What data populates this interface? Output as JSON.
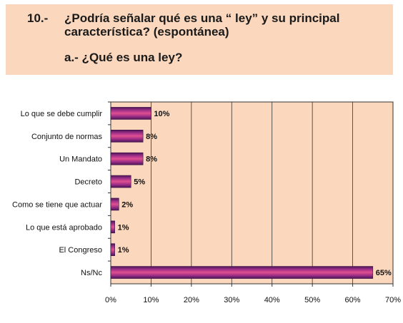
{
  "header": {
    "number": "10.-",
    "question_line1": "¿Podría señalar qué es una “ ley” y su principal",
    "question_line2": "característica? (espontánea)",
    "sub_question": "a.- ¿Qué es una ley?",
    "background": "#fbd7bd"
  },
  "chart_data": {
    "type": "bar",
    "orientation": "horizontal",
    "categories": [
      "Lo que se debe cumplir",
      "Conjunto de normas",
      "Un Mandato",
      "Decreto",
      "Como se tiene que actuar",
      "Lo que está aprobado",
      "El Congreso",
      "Ns/Nc"
    ],
    "values": [
      10,
      8,
      8,
      5,
      2,
      1,
      1,
      65
    ],
    "value_labels": [
      "10%",
      "8%",
      "8%",
      "5%",
      "2%",
      "1%",
      "1%",
      "65%"
    ],
    "xlim": [
      0,
      70
    ],
    "xticks": [
      "0%",
      "10%",
      "20%",
      "30%",
      "40%",
      "50%",
      "60%",
      "70%"
    ],
    "grid": "vertical",
    "plot_background": "#fbd7bd",
    "bar_color": "#8b2a7e"
  }
}
